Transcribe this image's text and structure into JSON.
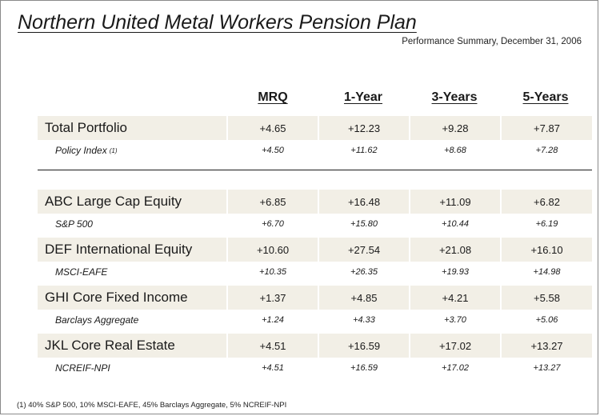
{
  "title": "Northern United Metal Workers Pension Plan",
  "subtitle": "Performance Summary, December 31, 2006",
  "columns": [
    "MRQ",
    "1-Year",
    "3-Years",
    "5-Years"
  ],
  "total": {
    "name": "Total Portfolio",
    "values": [
      "+4.65",
      "+12.23",
      "+9.28",
      "+7.87"
    ],
    "benchmark": {
      "name": "Policy Index",
      "marker": "(1)",
      "values": [
        "+4.50",
        "+11.62",
        "+8.68",
        "+7.28"
      ]
    }
  },
  "managers": [
    {
      "name": "ABC Large Cap Equity",
      "values": [
        "+6.85",
        "+16.48",
        "+11.09",
        "+6.82"
      ],
      "benchmark": {
        "name": "S&P 500",
        "values": [
          "+6.70",
          "+15.80",
          "+10.44",
          "+6.19"
        ]
      }
    },
    {
      "name": "DEF International Equity",
      "values": [
        "+10.60",
        "+27.54",
        "+21.08",
        "+16.10"
      ],
      "benchmark": {
        "name": "MSCI-EAFE",
        "values": [
          "+10.35",
          "+26.35",
          "+19.93",
          "+14.98"
        ]
      }
    },
    {
      "name": "GHI Core Fixed Income",
      "values": [
        "+1.37",
        "+4.85",
        "+4.21",
        "+5.58"
      ],
      "benchmark": {
        "name": "Barclays Aggregate",
        "values": [
          "+1.24",
          "+4.33",
          "+3.70",
          "+5.06"
        ]
      }
    },
    {
      "name": "JKL Core Real Estate",
      "values": [
        "+4.51",
        "+16.59",
        "+17.02",
        "+13.27"
      ],
      "benchmark": {
        "name": "NCREIF-NPI",
        "values": [
          "+4.51",
          "+16.59",
          "+17.02",
          "+13.27"
        ]
      }
    }
  ],
  "footnote": "(1) 40% S&P 500, 10% MSCI-EAFE, 45% Barclays Aggregate, 5% NCREIF-NPI",
  "colors": {
    "row_fill": "#f2efe6",
    "text": "#1a1a1a",
    "border": "#8a8a8a"
  }
}
